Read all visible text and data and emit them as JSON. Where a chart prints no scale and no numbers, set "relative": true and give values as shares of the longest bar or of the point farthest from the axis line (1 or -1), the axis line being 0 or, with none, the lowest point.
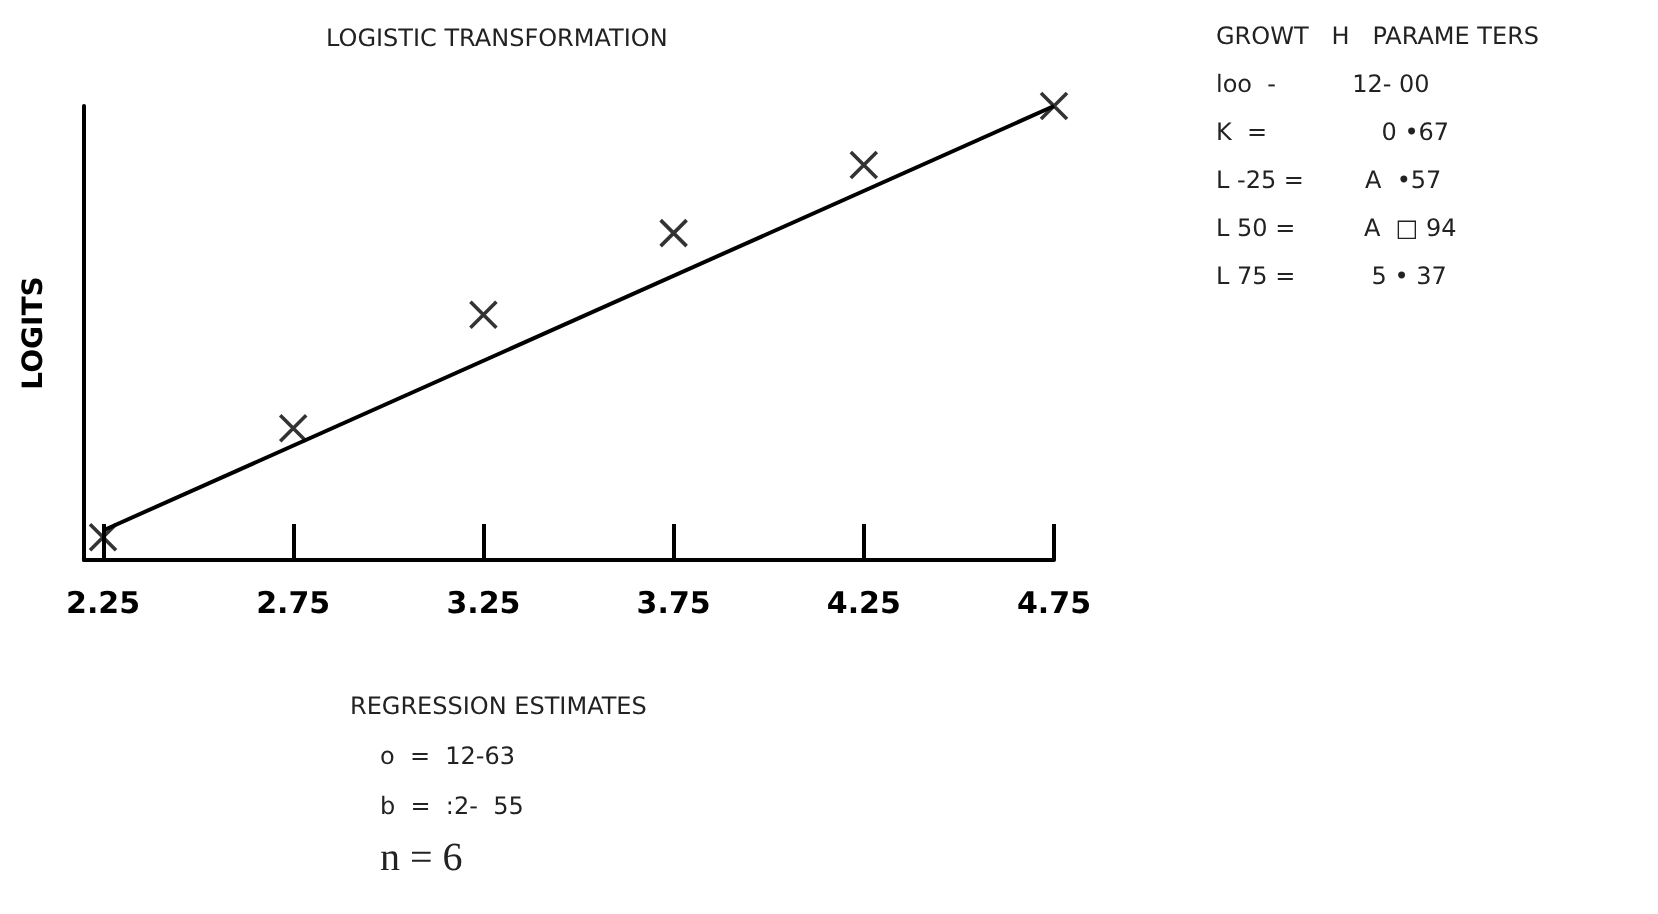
{
  "chart_data": {
    "type": "scatter",
    "title": "LOGISTIC TRANSFORMATION",
    "ylabel": "LOGITS",
    "relative": true,
    "marker": "cross",
    "grid": false,
    "xlim": [
      2.2,
      4.75
    ],
    "xticks": [
      2.25,
      2.75,
      3.25,
      3.75,
      4.25,
      4.75
    ],
    "series": [
      {
        "color": "#000000",
        "x": [
          2.25,
          2.75,
          3.25,
          3.75,
          4.25,
          4.75
        ],
        "values": [
          0.05,
          0.29,
          0.54,
          0.72,
          0.87,
          1
        ]
      },
      {
        "type": "line",
        "color": "#000000",
        "marker": "none",
        "line_style": "solid",
        "x": [
          2.25,
          4.75
        ],
        "values": [
          0.065,
          1
        ]
      }
    ],
    "annotations": [
      "GROWT   H   PARAME TERS",
      "loo  -          12- 00",
      "K  =               0 •67",
      "L -25 =        A  •57",
      "L 50 =         A  □ 94",
      "L 75 =          5 • 37",
      "REGRESSION ESTIMATES",
      "o  =  12-63",
      "b  =  :2-  55",
      "n = 6"
    ]
  }
}
